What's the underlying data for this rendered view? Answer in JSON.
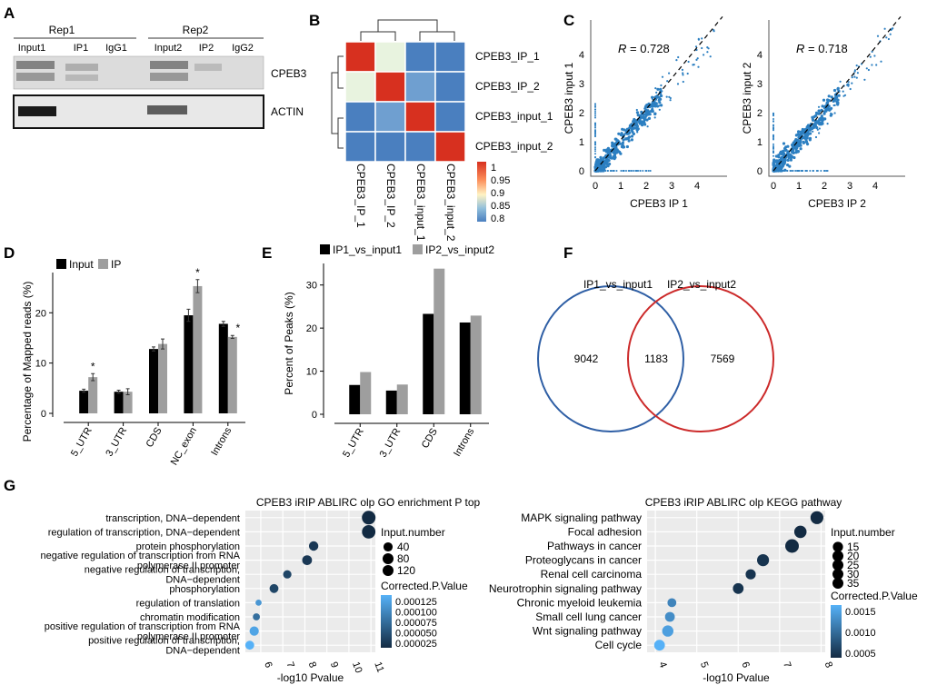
{
  "panelA": {
    "label": "A",
    "rep1": "Rep1",
    "rep2": "Rep2",
    "lanes": [
      "Input1",
      "IP1",
      "IgG1",
      "Input2",
      "IP2",
      "IgG2"
    ],
    "bands": [
      "CPEB3",
      "ACTIN"
    ]
  },
  "panelB": {
    "label": "B",
    "rows": [
      "CPEB3_IP_1",
      "CPEB3_IP_2",
      "CPEB3_input_1",
      "CPEB3_input_2"
    ],
    "cols": [
      "CPEB3_IP_1",
      "CPEB3_IP_2",
      "CPEB3_input_1",
      "CPEB3_input_2"
    ],
    "matrix": [
      [
        1,
        0.9,
        0.8,
        0.8
      ],
      [
        0.9,
        1,
        0.82,
        0.81
      ],
      [
        0.8,
        0.82,
        1,
        0.81
      ],
      [
        0.8,
        0.81,
        0.81,
        1
      ]
    ],
    "scale_ticks": [
      "1",
      "0.95",
      "0.9",
      "0.85",
      "0.8"
    ],
    "colors": {
      "high": "#d7301f",
      "mid": "#fff3c4",
      "low": "#4a7fbf"
    }
  },
  "panelC": {
    "label": "C",
    "plots": [
      {
        "r": "= 0.728",
        "xlabel": "CPEB3 IP 1",
        "ylabel": "CPEB3 input 1"
      },
      {
        "r": "= 0.718",
        "xlabel": "CPEB3 IP 2",
        "ylabel": "CPEB3 input 2"
      }
    ],
    "r_symbol": "R",
    "x_ticks": [
      "0",
      "1",
      "2",
      "3",
      "4"
    ],
    "y_ticks": [
      "0",
      "1",
      "2",
      "3",
      "4"
    ],
    "point_color": "#2c7fc1"
  },
  "chart_data": [
    {
      "id": "D",
      "label": "D",
      "type": "bar",
      "ylabel": "Percentage of Mapped reads (%)",
      "categories": [
        "5_UTR",
        "3_UTR",
        "CDS",
        "NC_exon",
        "Introns"
      ],
      "series": [
        {
          "name": "Input",
          "values": [
            4.5,
            4.3,
            12.8,
            19.5,
            17.8
          ],
          "errors": [
            0.3,
            0.3,
            0.4,
            1.2,
            0.5
          ],
          "color": "#000000"
        },
        {
          "name": "IP",
          "values": [
            7.2,
            4.3,
            13.8,
            25.3,
            15.2
          ],
          "errors": [
            0.7,
            0.6,
            1.0,
            1.3,
            0.3
          ],
          "color": "#9e9e9e"
        }
      ],
      "significance": [
        "*",
        "",
        "",
        "*",
        "*"
      ],
      "ylim": [
        0,
        28
      ],
      "yticks": [
        "0",
        "10",
        "20"
      ]
    },
    {
      "id": "E",
      "label": "E",
      "type": "bar",
      "ylabel": "Percent of Peaks (%)",
      "categories": [
        "5_UTR",
        "3_UTR",
        "CDS",
        "Introns"
      ],
      "series": [
        {
          "name": "IP1_vs_input1",
          "values": [
            6.8,
            5.5,
            23.3,
            21.3
          ],
          "color": "#000000"
        },
        {
          "name": "IP2_vs_input2",
          "values": [
            9.8,
            6.9,
            33.8,
            22.9
          ],
          "color": "#9e9e9e"
        }
      ],
      "ylim": [
        0,
        35
      ],
      "yticks": [
        "0",
        "10",
        "20",
        "30"
      ]
    },
    {
      "id": "G1",
      "type": "scatter",
      "title": "CPEB3 iRIP ABLIRC olp GO enrichment P top",
      "xlabel": "-log10 Pvalue",
      "xticks": [
        "6",
        "7",
        "8",
        "9",
        "10",
        "11"
      ],
      "xlim": [
        5.3,
        11.2
      ],
      "terms": [
        [
          "transcription, DNA−dependent"
        ],
        [
          "regulation of transcription, DNA−dependent"
        ],
        [
          "protein phosphorylation"
        ],
        [
          "negative regulation of transcription from RNA",
          "polymerase II promoter"
        ],
        [
          "negative regulation of transcription,",
          "DNA−dependent"
        ],
        [
          "phosphorylation"
        ],
        [
          "regulation of translation"
        ],
        [
          "chromatin modification"
        ],
        [
          "positive regulation of transcription from RNA",
          "polymerase II promoter"
        ],
        [
          "positive regulation of transcription,",
          "DNA−dependent"
        ]
      ],
      "x": [
        10.9,
        10.9,
        8.4,
        8.1,
        7.2,
        6.6,
        5.9,
        5.8,
        5.7,
        5.5
      ],
      "size": [
        130,
        125,
        45,
        50,
        30,
        35,
        8,
        15,
        40,
        35
      ],
      "p_adj": [
        2e-05,
        2e-05,
        3e-05,
        3e-05,
        4e-05,
        4e-05,
        0.0001,
        7e-05,
        0.00011,
        0.00012
      ],
      "size_legend_title": "Input.number",
      "size_legend": [
        "40",
        "80",
        "120"
      ],
      "color_legend_title": "Corrected.P.Value",
      "color_legend": [
        "0.000125",
        "0.000100",
        "0.000075",
        "0.000050",
        "0.000025"
      ]
    },
    {
      "id": "G2",
      "type": "scatter",
      "title": "CPEB3 iRIP ABLIRC olp KEGG pathway",
      "xlabel": "-log10 Pvalue",
      "xticks": [
        "4",
        "5",
        "6",
        "7",
        "8"
      ],
      "xlim": [
        3.8,
        8.1
      ],
      "terms": [
        [
          "MAPK signaling pathway"
        ],
        [
          "Focal adhesion"
        ],
        [
          "Pathways in cancer"
        ],
        [
          "Proteoglycans in cancer"
        ],
        [
          "Renal cell carcinoma"
        ],
        [
          "Neurotrophin signaling pathway"
        ],
        [
          "Chronic myeloid leukemia"
        ],
        [
          "Small cell lung cancer"
        ],
        [
          "Wnt signaling pathway"
        ],
        [
          "Cell cycle"
        ]
      ],
      "x": [
        7.9,
        7.5,
        7.3,
        6.6,
        6.3,
        6.0,
        4.4,
        4.35,
        4.3,
        4.1
      ],
      "size": [
        30,
        27,
        35,
        25,
        15,
        18,
        10,
        13,
        20,
        18
      ],
      "p_adj": [
        0.0003,
        0.0003,
        0.0003,
        0.0004,
        0.0004,
        0.0004,
        0.0013,
        0.0014,
        0.0016,
        0.0018
      ],
      "size_legend_title": "Input.number",
      "size_legend": [
        "15",
        "20",
        "25",
        "30",
        "35"
      ],
      "color_legend_title": "Corrected.P.Value",
      "color_legend": [
        "0.0015",
        "0.0010",
        "0.0005"
      ]
    }
  ],
  "panelF": {
    "label": "F",
    "set1": "IP1_vs_input1",
    "set2": "IP2_vs_input2",
    "only1": "9042",
    "both": "1183",
    "only2": "7569",
    "color1": "#2f5fa5",
    "color2": "#cc2a2a"
  },
  "panelG": {
    "label": "G"
  }
}
